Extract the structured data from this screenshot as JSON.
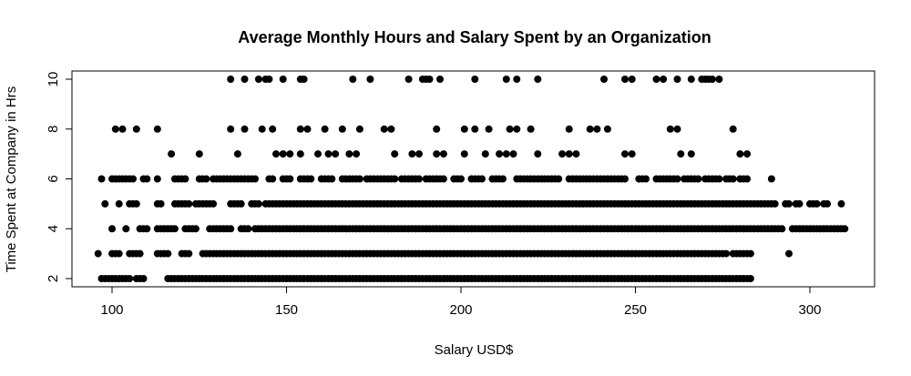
{
  "chart_data": {
    "type": "scatter",
    "title": "Average Monthly Hours and Salary Spent by an Organization",
    "xlabel": "Salary USD$",
    "ylabel": "Time Spent at Company in Hrs",
    "xlim": [
      90,
      320
    ],
    "ylim": [
      1.8,
      10.3
    ],
    "xticks": [
      100,
      150,
      200,
      250,
      300
    ],
    "yticks": [
      2,
      4,
      6,
      8,
      10
    ],
    "grid": false,
    "marker_color": "#000000",
    "series": [
      {
        "bands": [
          {
            "y": 2,
            "ranges": [
              [
                97,
                105
              ],
              [
                107,
                109
              ],
              [
                116,
                283
              ]
            ]
          },
          {
            "y": 3,
            "ranges": [
              [
                96,
                96
              ],
              [
                100,
                102
              ],
              [
                105,
                108
              ],
              [
                113,
                116
              ],
              [
                120,
                122
              ],
              [
                126,
                276
              ],
              [
                278,
                283
              ],
              [
                294,
                294
              ]
            ]
          },
          {
            "y": 4,
            "ranges": [
              [
                100,
                100
              ],
              [
                104,
                104
              ],
              [
                108,
                110
              ],
              [
                113,
                118
              ],
              [
                121,
                124
              ],
              [
                128,
                134
              ],
              [
                137,
                139
              ],
              [
                141,
                292
              ],
              [
                295,
                310
              ]
            ]
          },
          {
            "y": 5,
            "ranges": [
              [
                98,
                98
              ],
              [
                102,
                102
              ],
              [
                105,
                107
              ],
              [
                113,
                114
              ],
              [
                118,
                122
              ],
              [
                124,
                129
              ],
              [
                134,
                137
              ],
              [
                140,
                142
              ],
              [
                144,
                290
              ],
              [
                293,
                294
              ],
              [
                296,
                297
              ],
              [
                300,
                302
              ],
              [
                304,
                305
              ],
              [
                309,
                309
              ]
            ]
          },
          {
            "y": 6,
            "ranges": [
              [
                97,
                97
              ],
              [
                100,
                106
              ],
              [
                109,
                110
              ],
              [
                113,
                113
              ],
              [
                118,
                121
              ],
              [
                125,
                127
              ],
              [
                129,
                135
              ],
              [
                136,
                141
              ],
              [
                145,
                146
              ],
              [
                149,
                151
              ],
              [
                154,
                157
              ],
              [
                160,
                163
              ],
              [
                166,
                171
              ],
              [
                173,
                181
              ],
              [
                183,
                188
              ],
              [
                190,
                195
              ],
              [
                198,
                200
              ],
              [
                203,
                206
              ],
              [
                209,
                212
              ],
              [
                216,
                228
              ],
              [
                231,
                247
              ],
              [
                251,
                253
              ],
              [
                256,
                262
              ],
              [
                264,
                268
              ],
              [
                270,
                274
              ],
              [
                276,
                278
              ],
              [
                280,
                282
              ],
              [
                289,
                289
              ]
            ]
          }
        ],
        "points": [
          [
            101,
            8
          ],
          [
            103,
            8
          ],
          [
            107,
            8
          ],
          [
            113,
            8
          ],
          [
            134,
            8
          ],
          [
            138,
            8
          ],
          [
            143,
            8
          ],
          [
            146,
            8
          ],
          [
            154,
            8
          ],
          [
            156,
            8
          ],
          [
            161,
            8
          ],
          [
            166,
            8
          ],
          [
            171,
            8
          ],
          [
            178,
            8
          ],
          [
            180,
            8
          ],
          [
            193,
            8
          ],
          [
            201,
            8
          ],
          [
            204,
            8
          ],
          [
            208,
            8
          ],
          [
            214,
            8
          ],
          [
            216,
            8
          ],
          [
            220,
            8
          ],
          [
            231,
            8
          ],
          [
            237,
            8
          ],
          [
            239,
            8
          ],
          [
            242,
            8
          ],
          [
            260,
            8
          ],
          [
            262,
            8
          ],
          [
            278,
            8
          ],
          [
            117,
            7
          ],
          [
            125,
            7
          ],
          [
            136,
            7
          ],
          [
            147,
            7
          ],
          [
            149,
            7
          ],
          [
            151,
            7
          ],
          [
            154,
            7
          ],
          [
            159,
            7
          ],
          [
            162,
            7
          ],
          [
            164,
            7
          ],
          [
            168,
            7
          ],
          [
            170,
            7
          ],
          [
            181,
            7
          ],
          [
            186,
            7
          ],
          [
            188,
            7
          ],
          [
            193,
            7
          ],
          [
            195,
            7
          ],
          [
            201,
            7
          ],
          [
            207,
            7
          ],
          [
            211,
            7
          ],
          [
            213,
            7
          ],
          [
            215,
            7
          ],
          [
            222,
            7
          ],
          [
            229,
            7
          ],
          [
            231,
            7
          ],
          [
            233,
            7
          ],
          [
            247,
            7
          ],
          [
            249,
            7
          ],
          [
            263,
            7
          ],
          [
            266,
            7
          ],
          [
            280,
            7
          ],
          [
            282,
            7
          ],
          [
            134,
            10
          ],
          [
            138,
            10
          ],
          [
            142,
            10
          ],
          [
            144,
            10
          ],
          [
            145,
            10
          ],
          [
            149,
            10
          ],
          [
            154,
            10
          ],
          [
            155,
            10
          ],
          [
            169,
            10
          ],
          [
            174,
            10
          ],
          [
            185,
            10
          ],
          [
            189,
            10
          ],
          [
            190,
            10
          ],
          [
            191,
            10
          ],
          [
            194,
            10
          ],
          [
            204,
            10
          ],
          [
            213,
            10
          ],
          [
            216,
            10
          ],
          [
            222,
            10
          ],
          [
            241,
            10
          ],
          [
            247,
            10
          ],
          [
            249,
            10
          ],
          [
            256,
            10
          ],
          [
            258,
            10
          ],
          [
            262,
            10
          ],
          [
            266,
            10
          ],
          [
            269,
            10
          ],
          [
            270,
            10
          ],
          [
            271,
            10
          ],
          [
            272,
            10
          ],
          [
            274,
            10
          ]
        ]
      }
    ]
  }
}
